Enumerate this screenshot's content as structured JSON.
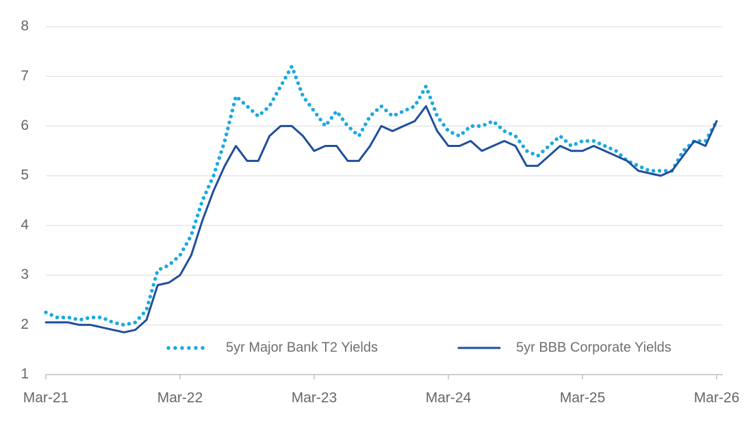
{
  "chart_data": {
    "type": "line",
    "x": [
      "2021-03",
      "2021-04",
      "2021-05",
      "2021-06",
      "2021-07",
      "2021-08",
      "2021-09",
      "2021-10",
      "2021-11",
      "2021-12",
      "2022-01",
      "2022-02",
      "2022-03",
      "2022-04",
      "2022-05",
      "2022-06",
      "2022-07",
      "2022-08",
      "2022-09",
      "2022-10",
      "2022-11",
      "2022-12",
      "2023-01",
      "2023-02",
      "2023-03",
      "2023-04",
      "2023-05",
      "2023-06",
      "2023-07",
      "2023-08",
      "2023-09",
      "2023-10",
      "2023-11",
      "2023-12",
      "2024-01",
      "2024-02",
      "2024-03",
      "2024-04",
      "2024-05",
      "2024-06",
      "2024-07",
      "2024-08",
      "2024-09",
      "2024-10",
      "2024-11",
      "2024-12",
      "2025-01",
      "2025-02",
      "2025-03",
      "2025-04",
      "2025-05",
      "2025-06",
      "2025-07",
      "2025-08",
      "2025-09",
      "2025-10",
      "2025-11",
      "2025-12",
      "2026-01",
      "2026-02",
      "2026-03"
    ],
    "series": [
      {
        "name": "5yr Major Bank T2 Yields",
        "color": "#1aa9e2",
        "style": "dotted",
        "values": [
          2.25,
          2.15,
          2.15,
          2.1,
          2.15,
          2.15,
          2.05,
          2.0,
          2.05,
          2.3,
          3.1,
          3.2,
          3.4,
          3.8,
          4.5,
          5.0,
          5.7,
          6.6,
          6.4,
          6.2,
          6.4,
          6.8,
          7.2,
          6.6,
          6.3,
          6.0,
          6.3,
          6.0,
          5.8,
          6.2,
          6.4,
          6.2,
          6.3,
          6.4,
          6.8,
          6.2,
          5.9,
          5.8,
          6.0,
          6.0,
          6.1,
          5.9,
          5.8,
          5.5,
          5.4,
          5.6,
          5.8,
          5.6,
          5.7,
          5.7,
          5.6,
          5.5,
          5.3,
          5.2,
          5.1,
          5.1,
          5.1,
          5.5,
          5.7,
          5.7,
          6.1
        ]
      },
      {
        "name": "5yr BBB Corporate Yields",
        "color": "#1f4e9c",
        "style": "solid",
        "values": [
          2.05,
          2.05,
          2.05,
          2.0,
          2.0,
          1.95,
          1.9,
          1.85,
          1.9,
          2.1,
          2.8,
          2.85,
          3.0,
          3.4,
          4.1,
          4.7,
          5.2,
          5.6,
          5.3,
          5.3,
          5.8,
          6.0,
          6.0,
          5.8,
          5.5,
          5.6,
          5.6,
          5.3,
          5.3,
          5.6,
          6.0,
          5.9,
          6.0,
          6.1,
          6.4,
          5.9,
          5.6,
          5.6,
          5.7,
          5.5,
          5.6,
          5.7,
          5.6,
          5.2,
          5.2,
          5.4,
          5.6,
          5.5,
          5.5,
          5.6,
          5.5,
          5.4,
          5.3,
          5.1,
          5.05,
          5.0,
          5.1,
          5.4,
          5.7,
          5.6,
          6.1
        ]
      }
    ],
    "ylim": [
      1,
      8
    ],
    "yticks": [
      1,
      2,
      3,
      4,
      5,
      6,
      7,
      8
    ],
    "xticks": [
      {
        "value": "2021-03",
        "label": "Mar-21"
      },
      {
        "value": "2022-03",
        "label": "Mar-22"
      },
      {
        "value": "2023-03",
        "label": "Mar-23"
      },
      {
        "value": "2024-03",
        "label": "Mar-24"
      },
      {
        "value": "2025-03",
        "label": "Mar-25"
      },
      {
        "value": "2026-03",
        "label": "Mar-26"
      }
    ],
    "grid": true,
    "legend": "bottom"
  }
}
